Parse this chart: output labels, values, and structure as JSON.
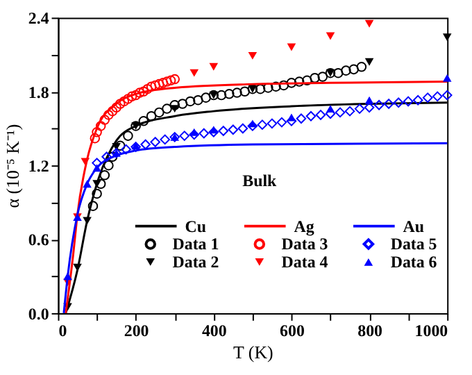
{
  "chart_data": {
    "type": "line",
    "xlabel": "T (K)",
    "ylabel": "α (10⁻⁵ K⁻¹)",
    "xlim": [
      0,
      1000
    ],
    "ylim": [
      0,
      2.4
    ],
    "xticks": [
      0,
      {
        "value": 100,
        "label": null
      },
      200,
      {
        "value": 300,
        "label": null
      },
      400,
      {
        "value": 500,
        "label": null
      },
      600,
      {
        "value": 700,
        "label": null
      },
      800,
      {
        "value": 900,
        "label": null
      },
      1000
    ],
    "yticks": [
      {
        "value": 0,
        "label": "0.0"
      },
      {
        "value": 0.3,
        "label": null
      },
      0.6,
      {
        "value": 0.9,
        "label": null
      },
      1.2,
      {
        "value": 1.5,
        "label": null
      },
      1.8,
      {
        "value": 2.1,
        "label": null
      },
      2.4
    ],
    "grid": false,
    "legend": "bottom right",
    "annotations": [
      "Bulk"
    ],
    "series": [
      {
        "name": "Cu",
        "color": "#000000",
        "marker": "none",
        "x": [
          20,
          50,
          75,
          100,
          150,
          200,
          300,
          400,
          600,
          800,
          1000
        ],
        "values": [
          0,
          0.35,
          0.75,
          1.05,
          1.4,
          1.52,
          1.6,
          1.64,
          1.68,
          1.7,
          1.71
        ]
      },
      {
        "name": "Data 1",
        "type": "scatter",
        "color": "#000000",
        "marker": "circle",
        "x": [
          90,
          100,
          110,
          120,
          130,
          140,
          160,
          180,
          200,
          220,
          240,
          260,
          280,
          300,
          320,
          340,
          360,
          380,
          400,
          420,
          440,
          460,
          480,
          500,
          520,
          540,
          560,
          580,
          600,
          620,
          640,
          660,
          680,
          700,
          720,
          740,
          760,
          780
        ],
        "values": [
          0.87,
          0.97,
          1.05,
          1.12,
          1.2,
          1.27,
          1.36,
          1.44,
          1.52,
          1.56,
          1.6,
          1.63,
          1.66,
          1.69,
          1.7,
          1.72,
          1.73,
          1.75,
          1.77,
          1.77,
          1.78,
          1.79,
          1.8,
          1.82,
          1.82,
          1.83,
          1.84,
          1.85,
          1.87,
          1.88,
          1.89,
          1.91,
          1.92,
          1.95,
          1.95,
          1.97,
          1.98,
          2.0
        ]
      },
      {
        "name": "Data 2",
        "type": "scatter",
        "color": "#000000",
        "marker": "triangle-down",
        "x": [
          25,
          50,
          75,
          100,
          150,
          200,
          300,
          400,
          500,
          700,
          800,
          1000
        ],
        "values": [
          0.05,
          0.37,
          0.75,
          1.05,
          1.35,
          1.52,
          1.66,
          1.77,
          1.82,
          1.95,
          2.04,
          2.24
        ]
      },
      {
        "name": "Ag",
        "color": "#ff0000",
        "marker": "none",
        "x": [
          20,
          40,
          50,
          75,
          100,
          150,
          200,
          300,
          500,
          700,
          1000
        ],
        "values": [
          0,
          0.5,
          0.8,
          1.25,
          1.5,
          1.7,
          1.78,
          1.83,
          1.86,
          1.87,
          1.88
        ]
      },
      {
        "name": "Data 3",
        "type": "scatter",
        "color": "#ff0000",
        "marker": "circle",
        "x": [
          95,
          100,
          110,
          120,
          130,
          140,
          150,
          160,
          170,
          180,
          190,
          200,
          210,
          220,
          230,
          240,
          250,
          260,
          270,
          280,
          290,
          300
        ],
        "values": [
          1.42,
          1.47,
          1.52,
          1.57,
          1.61,
          1.64,
          1.67,
          1.7,
          1.72,
          1.74,
          1.76,
          1.77,
          1.79,
          1.8,
          1.82,
          1.84,
          1.85,
          1.86,
          1.87,
          1.88,
          1.89,
          1.9
        ]
      },
      {
        "name": "Data 4",
        "type": "scatter",
        "color": "#ff0000",
        "marker": "triangle-down",
        "x": [
          25,
          50,
          70,
          350,
          400,
          500,
          600,
          700,
          800
        ],
        "values": [
          0.25,
          0.78,
          1.23,
          1.95,
          2.0,
          2.09,
          2.16,
          2.25,
          2.35
        ]
      },
      {
        "name": "Au",
        "color": "#0000ff",
        "marker": "none",
        "x": [
          15,
          25,
          50,
          75,
          100,
          150,
          200,
          300,
          500,
          1000
        ],
        "values": [
          0,
          0.3,
          0.8,
          1.05,
          1.18,
          1.28,
          1.32,
          1.35,
          1.37,
          1.38
        ]
      },
      {
        "name": "Data 5",
        "type": "scatter",
        "color": "#0000ff",
        "marker": "diamond",
        "x": [
          100,
          125,
          150,
          175,
          200,
          225,
          250,
          275,
          300,
          325,
          350,
          375,
          400,
          425,
          450,
          475,
          500,
          525,
          550,
          575,
          600,
          625,
          650,
          675,
          700,
          725,
          750,
          775,
          800,
          825,
          850,
          875,
          900,
          925,
          950,
          975,
          1000
        ],
        "values": [
          1.22,
          1.27,
          1.3,
          1.33,
          1.35,
          1.37,
          1.39,
          1.41,
          1.43,
          1.44,
          1.45,
          1.46,
          1.47,
          1.48,
          1.49,
          1.5,
          1.52,
          1.53,
          1.54,
          1.55,
          1.56,
          1.58,
          1.6,
          1.61,
          1.62,
          1.63,
          1.64,
          1.66,
          1.67,
          1.69,
          1.7,
          1.71,
          1.72,
          1.73,
          1.75,
          1.76,
          1.77
        ]
      },
      {
        "name": "Data 6",
        "type": "scatter",
        "color": "#0000ff",
        "marker": "triangle-up",
        "x": [
          25,
          50,
          75,
          100,
          150,
          200,
          300,
          350,
          400,
          500,
          600,
          700,
          800,
          1000
        ],
        "values": [
          0.3,
          0.78,
          1.05,
          1.18,
          1.3,
          1.36,
          1.43,
          1.47,
          1.49,
          1.54,
          1.59,
          1.66,
          1.73,
          1.91
        ]
      }
    ]
  }
}
